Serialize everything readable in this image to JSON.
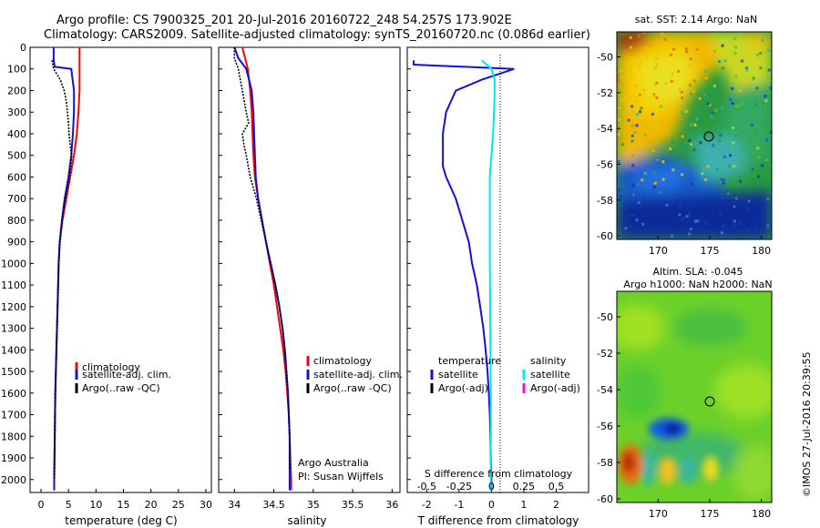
{
  "header": {
    "line1": "Argo profile: CS 7900325_201 20-Jul-2016 20160722_248 54.257S 173.902E",
    "line2": "Climatology: CARS2009. Satellite-adjusted climatology: synTS_20160720.nc (0.086d earlier)"
  },
  "credit": "©IMOS 27-Jul-2016 20:39:55",
  "colors": {
    "climatology": "#ff0000",
    "satellite": "#1010e0",
    "argo": "#000000",
    "satellite_sal": "#00e8e8",
    "argo_sal_adj": "#ff00ff"
  },
  "chart_data": [
    {
      "type": "line",
      "id": "temperature",
      "xlabel": "temperature (deg C)",
      "ylabel": "",
      "xlim": [
        -2,
        31
      ],
      "ylim": [
        2060,
        0
      ],
      "x_ticks": [
        0,
        5,
        10,
        15,
        20,
        25,
        30
      ],
      "y_ticks": [
        0,
        100,
        200,
        300,
        400,
        500,
        600,
        700,
        800,
        900,
        1000,
        1100,
        1200,
        1300,
        1400,
        1500,
        1600,
        1700,
        1800,
        1900,
        2000
      ],
      "legend": [
        "climatology",
        "satellite-adj. clim.",
        "Argo(..raw -QC)"
      ],
      "series": [
        {
          "name": "climatology",
          "points": [
            [
              7.0,
              0
            ],
            [
              7.0,
              100
            ],
            [
              7.0,
              200
            ],
            [
              6.8,
              300
            ],
            [
              6.5,
              400
            ],
            [
              6.0,
              500
            ],
            [
              5.3,
              600
            ],
            [
              4.6,
              700
            ],
            [
              3.9,
              800
            ],
            [
              3.4,
              900
            ],
            [
              3.2,
              1000
            ],
            [
              3.0,
              1200
            ],
            [
              2.8,
              1400
            ],
            [
              2.6,
              1600
            ],
            [
              2.5,
              1800
            ],
            [
              2.4,
              2000
            ],
            [
              2.4,
              2050
            ]
          ]
        },
        {
          "name": "satellite-adj. clim.",
          "points": [
            [
              2.3,
              0
            ],
            [
              2.3,
              60
            ],
            [
              2.5,
              90
            ],
            [
              5.5,
              100
            ],
            [
              6.0,
              200
            ],
            [
              6.0,
              300
            ],
            [
              5.8,
              400
            ],
            [
              5.5,
              500
            ],
            [
              5.0,
              600
            ],
            [
              4.3,
              700
            ],
            [
              3.8,
              800
            ],
            [
              3.4,
              900
            ],
            [
              3.2,
              1000
            ],
            [
              3.0,
              1200
            ],
            [
              2.8,
              1400
            ],
            [
              2.6,
              1600
            ],
            [
              2.5,
              1800
            ],
            [
              2.4,
              2000
            ],
            [
              2.4,
              2050
            ]
          ]
        },
        {
          "name": "Argo(..raw -QC)",
          "points": [
            [
              2.0,
              60
            ],
            [
              2.3,
              100
            ],
            [
              3.5,
              150
            ],
            [
              4.2,
              200
            ],
            [
              4.6,
              250
            ],
            [
              4.8,
              300
            ],
            [
              5.0,
              350
            ],
            [
              5.1,
              400
            ],
            [
              5.3,
              450
            ],
            [
              5.6,
              500
            ],
            [
              5.2,
              600
            ],
            [
              4.4,
              700
            ],
            [
              3.8,
              800
            ],
            [
              3.4,
              900
            ],
            [
              3.2,
              1000
            ],
            [
              3.0,
              1200
            ],
            [
              2.8,
              1400
            ],
            [
              2.6,
              1600
            ],
            [
              2.5,
              1800
            ],
            [
              2.4,
              2000
            ]
          ]
        }
      ]
    },
    {
      "type": "line",
      "id": "salinity",
      "xlabel": "salinity",
      "xlim": [
        33.8,
        36.1
      ],
      "ylim": [
        2060,
        0
      ],
      "x_ticks": [
        34,
        34.5,
        35,
        35.5,
        36
      ],
      "legend": [
        "climatology",
        "satellite-adj. clim.",
        "Argo(..raw -QC)"
      ],
      "annotation": [
        "Argo Australia",
        "PI: Susan Wijffels"
      ],
      "series": [
        {
          "name": "climatology",
          "points": [
            [
              34.1,
              0
            ],
            [
              34.17,
              100
            ],
            [
              34.2,
              200
            ],
            [
              34.22,
              300
            ],
            [
              34.23,
              400
            ],
            [
              34.24,
              500
            ],
            [
              34.26,
              600
            ],
            [
              34.3,
              700
            ],
            [
              34.35,
              800
            ],
            [
              34.4,
              900
            ],
            [
              34.45,
              1000
            ],
            [
              34.5,
              1100
            ],
            [
              34.54,
              1200
            ],
            [
              34.58,
              1300
            ],
            [
              34.62,
              1400
            ],
            [
              34.65,
              1500
            ],
            [
              34.67,
              1600
            ],
            [
              34.69,
              1700
            ],
            [
              34.7,
              1800
            ],
            [
              34.71,
              1900
            ],
            [
              34.72,
              2000
            ],
            [
              34.72,
              2050
            ]
          ]
        },
        {
          "name": "satellite-adj. clim.",
          "points": [
            [
              34.0,
              0
            ],
            [
              34.05,
              50
            ],
            [
              34.15,
              100
            ],
            [
              34.22,
              200
            ],
            [
              34.24,
              300
            ],
            [
              34.25,
              400
            ],
            [
              34.26,
              500
            ],
            [
              34.27,
              600
            ],
            [
              34.3,
              700
            ],
            [
              34.35,
              800
            ],
            [
              34.4,
              900
            ],
            [
              34.46,
              1000
            ],
            [
              34.52,
              1100
            ],
            [
              34.57,
              1200
            ],
            [
              34.61,
              1300
            ],
            [
              34.64,
              1400
            ],
            [
              34.66,
              1500
            ],
            [
              34.68,
              1600
            ],
            [
              34.69,
              1700
            ],
            [
              34.7,
              1800
            ],
            [
              34.7,
              1900
            ],
            [
              34.7,
              2000
            ],
            [
              34.7,
              2050
            ]
          ]
        },
        {
          "name": "Argo(..raw -QC)",
          "points": [
            [
              34.0,
              0
            ],
            [
              34.0,
              50
            ],
            [
              34.05,
              100
            ],
            [
              34.1,
              200
            ],
            [
              34.15,
              300
            ],
            [
              34.18,
              350
            ],
            [
              34.1,
              400
            ],
            [
              34.12,
              450
            ],
            [
              34.15,
              500
            ],
            [
              34.2,
              600
            ],
            [
              34.28,
              700
            ],
            [
              34.34,
              800
            ],
            [
              34.4,
              900
            ],
            [
              34.46,
              1000
            ],
            [
              34.52,
              1100
            ],
            [
              34.57,
              1200
            ],
            [
              34.61,
              1300
            ],
            [
              34.64,
              1400
            ],
            [
              34.66,
              1500
            ],
            [
              34.68,
              1600
            ],
            [
              34.69,
              1700
            ],
            [
              34.7,
              1800
            ],
            [
              34.7,
              1900
            ],
            [
              34.7,
              1950
            ]
          ]
        }
      ]
    },
    {
      "type": "line",
      "id": "difference",
      "xlabel": "T difference from climatology",
      "xlabel_top": "S difference from climatology",
      "xlim": [
        -2.6,
        3.0
      ],
      "ylim": [
        2060,
        0
      ],
      "x_ticks": [
        -2,
        -1,
        0,
        1,
        2
      ],
      "x_ticks_top": [
        -0.5,
        -0.25,
        0,
        0.25,
        0.5
      ],
      "legend_left_title": "temperature",
      "legend_right_title": "salinity",
      "legend_left": [
        "satellite",
        "Argo(-adj)"
      ],
      "legend_right": [
        "satellite",
        "Argo(-adj)"
      ],
      "series": [
        {
          "name": "temperature satellite",
          "points": [
            [
              -2.4,
              60
            ],
            [
              -2.4,
              80
            ],
            [
              0.7,
              100
            ],
            [
              -0.3,
              150
            ],
            [
              -1.1,
              200
            ],
            [
              -1.4,
              300
            ],
            [
              -1.5,
              400
            ],
            [
              -1.5,
              500
            ],
            [
              -1.5,
              550
            ],
            [
              -1.4,
              600
            ],
            [
              -1.1,
              700
            ],
            [
              -0.9,
              800
            ],
            [
              -0.7,
              900
            ],
            [
              -0.6,
              1000
            ],
            [
              -0.45,
              1100
            ],
            [
              -0.35,
              1200
            ],
            [
              -0.25,
              1300
            ],
            [
              -0.18,
              1400
            ],
            [
              -0.12,
              1500
            ],
            [
              -0.08,
              1600
            ],
            [
              -0.05,
              1700
            ],
            [
              -0.03,
              1800
            ],
            [
              -0.02,
              1900
            ],
            [
              0.0,
              2000
            ],
            [
              0.0,
              2050
            ]
          ]
        },
        {
          "name": "salinity satellite",
          "points": [
            [
              -0.3,
              60
            ],
            [
              0.0,
              100
            ],
            [
              0.1,
              150
            ],
            [
              0.1,
              200
            ],
            [
              0.08,
              300
            ],
            [
              0.05,
              400
            ],
            [
              0.0,
              500
            ],
            [
              -0.05,
              600
            ],
            [
              -0.05,
              700
            ],
            [
              -0.05,
              800
            ],
            [
              -0.05,
              900
            ],
            [
              -0.05,
              1000
            ],
            [
              -0.04,
              1200
            ],
            [
              -0.03,
              1400
            ],
            [
              -0.02,
              1600
            ],
            [
              -0.02,
              1800
            ],
            [
              -0.02,
              2000
            ],
            [
              -0.02,
              2050
            ]
          ]
        }
      ]
    },
    {
      "type": "heatmap",
      "id": "sst-map",
      "title": "sat. SST: 2.14  Argo: NaN",
      "xlim": [
        166,
        181
      ],
      "ylim": [
        -60.2,
        -48.6
      ],
      "x_ticks": [
        170,
        175,
        180
      ],
      "y_ticks": [
        -50,
        -52,
        -54,
        -56,
        -58,
        -60
      ],
      "marker": {
        "lon": 173.9,
        "lat": -54.26
      }
    },
    {
      "type": "heatmap",
      "id": "sla-map",
      "title": "Altim. SLA: -0.045",
      "subtitle": "Argo h1000: NaN  h2000: NaN",
      "xlim": [
        166,
        181
      ],
      "ylim": [
        -60.2,
        -48.6
      ],
      "x_ticks": [
        170,
        175,
        180
      ],
      "y_ticks": [
        -50,
        -52,
        -54,
        -56,
        -58,
        -60
      ],
      "marker": {
        "lon": 173.9,
        "lat": -54.26
      }
    }
  ]
}
